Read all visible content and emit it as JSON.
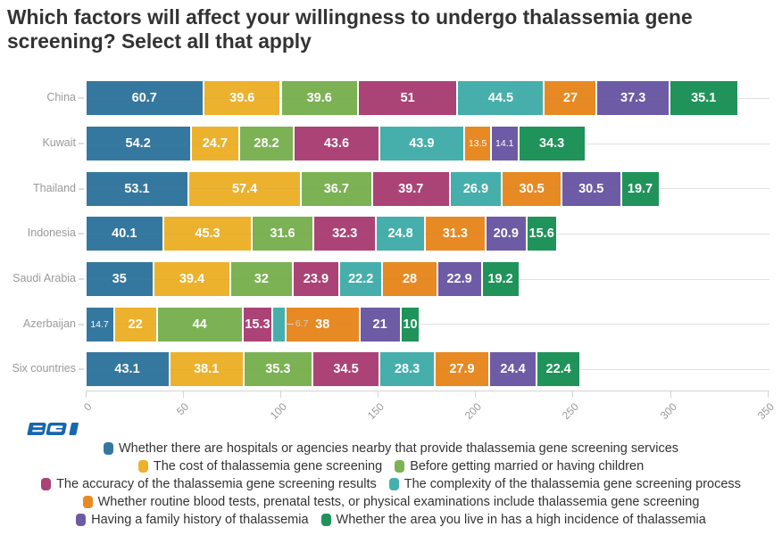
{
  "title": "Which factors will affect your willingness to undergo thalassemia gene screening? Select all that apply",
  "logo_text": "BGI",
  "brand_color": "#1766b0",
  "chart_data": {
    "type": "bar",
    "orientation": "horizontal-stacked",
    "title": "Which factors will affect your willingness to undergo thalassemia gene screening? Select all that apply",
    "categories": [
      "China",
      "Kuwait",
      "Thailand",
      "Indonesia",
      "Saudi Arabia",
      "Azerbaijan",
      "Six countries"
    ],
    "series": [
      {
        "name": "Whether there are hospitals or agencies nearby that provide thalassemia gene screening services",
        "color": "#35789f",
        "values": [
          60.7,
          54.2,
          53.1,
          40.1,
          35,
          14.7,
          43.1
        ]
      },
      {
        "name": "The cost of thalassemia gene screening",
        "color": "#ecb22d",
        "values": [
          39.6,
          24.7,
          57.4,
          45.3,
          39.4,
          22,
          38.1
        ]
      },
      {
        "name": "Before getting married or having children",
        "color": "#7cb254",
        "values": [
          39.6,
          28.2,
          36.7,
          31.6,
          32,
          44,
          35.3
        ]
      },
      {
        "name": "The accuracy of the thalassemia gene screening results",
        "color": "#ab4377",
        "values": [
          51,
          43.6,
          39.7,
          32.3,
          23.9,
          15.3,
          34.5
        ]
      },
      {
        "name": "The complexity of the thalassemia gene screening process",
        "color": "#46afac",
        "values": [
          44.5,
          43.9,
          26.9,
          24.8,
          22.2,
          6.7,
          28.3
        ]
      },
      {
        "name": "Whether routine blood tests, prenatal tests, or physical examinations include thalassemia gene screening",
        "color": "#e78a23",
        "values": [
          27,
          13.5,
          30.5,
          31.3,
          28,
          38,
          27.9
        ]
      },
      {
        "name": "Having a family history of thalassemia",
        "color": "#6e5ba5",
        "values": [
          37.3,
          14.1,
          30.5,
          20.9,
          22.9,
          21,
          24.4
        ]
      },
      {
        "name": "Whether the area you live in has a high incidence of thalassemia",
        "color": "#1f935a",
        "values": [
          35.1,
          34.3,
          19.7,
          15.6,
          19.2,
          10,
          22.4
        ]
      }
    ],
    "xticks": [
      0,
      50,
      100,
      150,
      200,
      250,
      300,
      350
    ],
    "xlim": [
      0,
      351
    ],
    "grid": "horizontal-category-lines",
    "legend_position": "bottom-center",
    "legend_rows": [
      [
        0
      ],
      [
        1,
        2
      ],
      [
        3,
        4
      ],
      [
        5
      ],
      [
        6,
        7
      ]
    ],
    "label_modes": {
      "5-1": "small",
      "6-1": "small",
      "0-5": "small",
      "4-5": "outside"
    }
  }
}
